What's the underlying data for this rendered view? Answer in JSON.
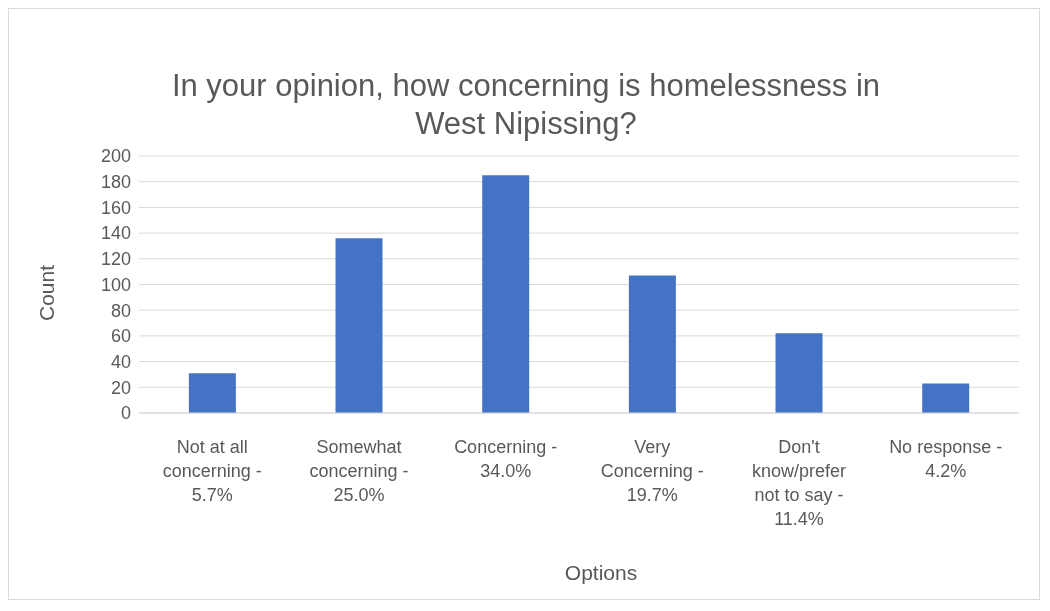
{
  "chart_data": {
    "type": "bar",
    "title": "In your opinion, how concerning is homelessness in West Nipissing?",
    "xlabel": "Options",
    "ylabel": "Count",
    "categories": [
      "Not at all concerning - 5.7%",
      "Somewhat concerning - 25.0%",
      "Concerning - 34.0%",
      "Very Concerning - 19.7%",
      "Don't know/prefer not to say - 11.4%",
      "No response - 4.2%"
    ],
    "values": [
      31,
      136,
      185,
      107,
      62,
      23
    ],
    "color": "#4472c4",
    "ylim": [
      0,
      200
    ],
    "yticks": [
      0,
      20,
      40,
      60,
      80,
      100,
      120,
      140,
      160,
      180,
      200
    ],
    "grid": "y",
    "legend": false
  }
}
